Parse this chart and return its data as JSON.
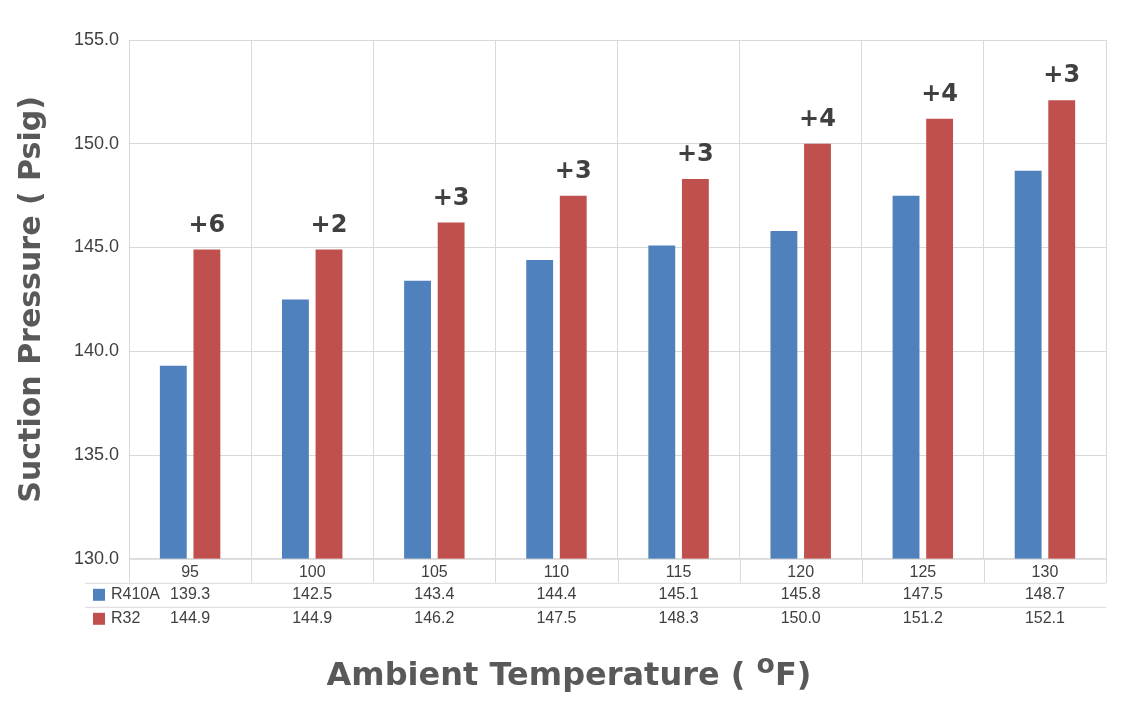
{
  "chart_data": {
    "type": "bar",
    "xlabel": "Ambient Temperature ( $^{o}$F)",
    "ylabel": "Suction Pressure ( Psig)",
    "categories": [
      "95",
      "100",
      "105",
      "110",
      "115",
      "120",
      "125",
      "130"
    ],
    "series": [
      {
        "name": "R410A",
        "color": "#4f81bd",
        "values": [
          139.3,
          142.5,
          143.4,
          144.4,
          145.1,
          145.8,
          147.5,
          148.7
        ],
        "value_labels": [
          "139.3",
          "142.5",
          "143.4",
          "144.4",
          "145.1",
          "145.8",
          "147.5",
          "148.7"
        ]
      },
      {
        "name": "R32",
        "color": "#c0504d",
        "values": [
          144.9,
          144.9,
          146.2,
          147.5,
          148.3,
          150.0,
          151.2,
          152.1
        ],
        "value_labels": [
          "144.9",
          "144.9",
          "146.2",
          "147.5",
          "148.3",
          "150.0",
          "151.2",
          "152.1"
        ]
      }
    ],
    "ylim": [
      130,
      155
    ],
    "yticks": [
      {
        "value": 130,
        "label": "130.0"
      },
      {
        "value": 135,
        "label": "135.0"
      },
      {
        "value": 140,
        "label": "140.0"
      },
      {
        "value": 145,
        "label": "145.0"
      },
      {
        "value": 150,
        "label": "150.0"
      },
      {
        "value": 155,
        "label": "155.0"
      }
    ],
    "grid": true,
    "legend": "bottom",
    "annotations": [
      {
        "text": "+6",
        "x": "95",
        "y": 144.9
      },
      {
        "text": "+2",
        "x": "100",
        "y": 144.9
      },
      {
        "text": "+3",
        "x": "105",
        "y": 146.2
      },
      {
        "text": "+3",
        "x": "110",
        "y": 147.5
      },
      {
        "text": "+3",
        "x": "115",
        "y": 148.3
      },
      {
        "text": "+4",
        "x": "120",
        "y": 150.0
      },
      {
        "text": "+4",
        "x": "125",
        "y": 151.2
      },
      {
        "text": "+3",
        "x": "130",
        "y": 152.1
      }
    ]
  }
}
